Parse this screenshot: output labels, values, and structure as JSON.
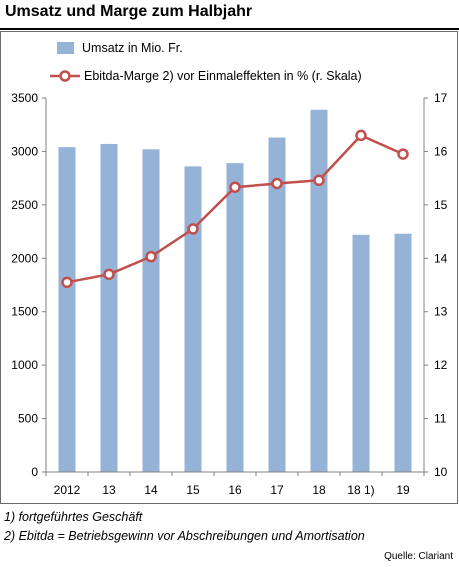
{
  "title": "Umsatz und Marge zum Halbjahr",
  "colors": {
    "bar": "#95b3d7",
    "line": "#c0504d",
    "marker_fill": "#ffffff",
    "axis": "#808080"
  },
  "chart_data": {
    "type": "bar+line",
    "categories": [
      "2012",
      "13",
      "14",
      "15",
      "16",
      "17",
      "18",
      "18 1)",
      "19"
    ],
    "series": [
      {
        "name": "Umsatz in Mio. Fr.",
        "type": "bar",
        "axis": "left",
        "values": [
          3040,
          3070,
          3020,
          2860,
          2890,
          3130,
          3390,
          2220,
          2230
        ]
      },
      {
        "name": "Ebitda-Marge 2) vor Einmaleffekten in % (r. Skala)",
        "type": "line",
        "axis": "right",
        "values": [
          13.55,
          13.7,
          14.03,
          14.55,
          15.33,
          15.4,
          15.46,
          16.3,
          15.95
        ]
      }
    ],
    "y_left": {
      "lim": [
        0,
        3500
      ],
      "ticks": [
        "0",
        "500",
        "1000",
        "1500",
        "2000",
        "2500",
        "3000",
        "3500"
      ]
    },
    "y_right": {
      "lim": [
        10,
        17
      ],
      "ticks": [
        "10",
        "11",
        "12",
        "13",
        "14",
        "15",
        "16",
        "17"
      ]
    },
    "legend_position": "top-left",
    "grid": false
  },
  "footnotes": [
    "1) fortgeführtes Geschäft",
    "2) Ebitda = Betriebsgewinn vor Abschreibungen und Amortisation"
  ],
  "source": "Quelle: Clariant"
}
